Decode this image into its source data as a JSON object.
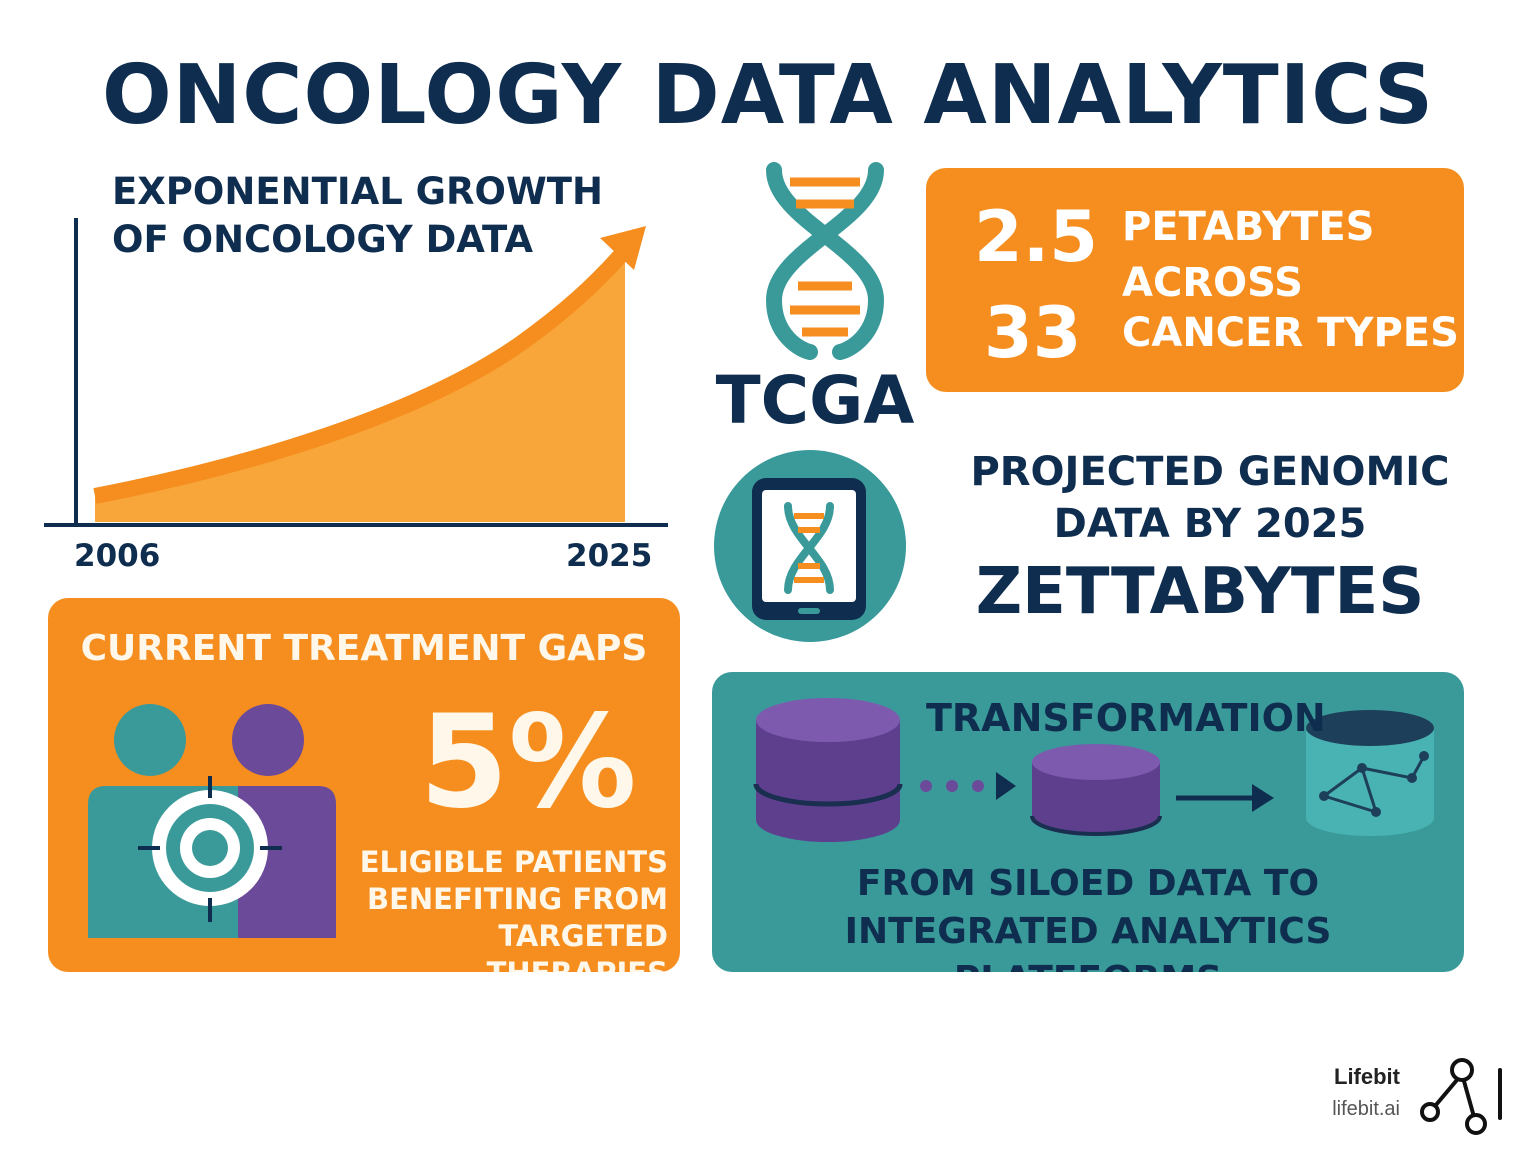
{
  "title": "ONCOLOGY DATA ANALYTICS",
  "growth": {
    "title_line1": "EXPONENTIAL GROWTH",
    "title_line2": "OF ONCOLOGY DATA",
    "start_year": "2006",
    "end_year": "2025"
  },
  "tcga": {
    "label": "TCGA",
    "stat1_value": "2.5",
    "stat1_label": "PETABYTES",
    "stat2_label": "ACROSS",
    "stat3_value": "33",
    "stat3_label": "CANCER TYPES"
  },
  "projection": {
    "line1": "PROJECTED GENOMIC",
    "line2": "DATA BY 2025",
    "value": "ZETTABYTES"
  },
  "gaps": {
    "title": "CURRENT TREATMENT GAPS",
    "percent": "5%",
    "desc_line1": "ELIGIBLE PATIENTS",
    "desc_line2": "BENEFITING FROM",
    "desc_line3": "TARGETED THERAPIES"
  },
  "transformation": {
    "title": "TRANSFORMATION",
    "desc_line1": "FROM SILOED DATA TO",
    "desc_line2": "INTEGRATED ANALYTICS PLATFFORMS"
  },
  "brand": {
    "name": "Lifebit",
    "url": "lifebit.ai"
  },
  "colors": {
    "navy": "#0f2d4f",
    "orange": "#f58e1f",
    "teal": "#3a9a9a",
    "purple": "#6b4a9a"
  }
}
